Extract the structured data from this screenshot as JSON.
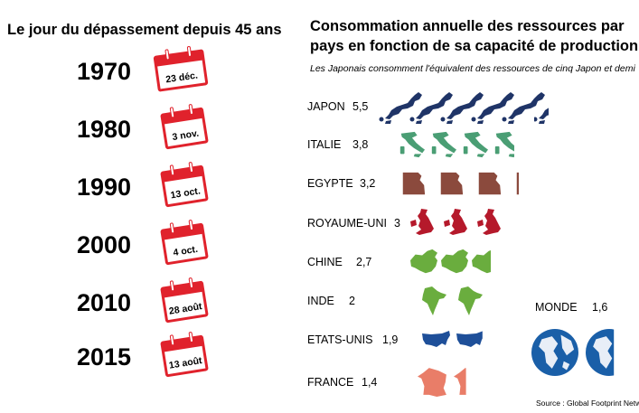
{
  "left": {
    "title": "Le jour du dépassement depuis 45 ans",
    "items": [
      {
        "year": "1970",
        "date": "23 déc."
      },
      {
        "year": "1980",
        "date": "3 nov."
      },
      {
        "year": "1990",
        "date": "13 oct."
      },
      {
        "year": "2000",
        "date": "4 oct."
      },
      {
        "year": "2010",
        "date": "28 août"
      },
      {
        "year": "2015",
        "date": "13 août"
      }
    ]
  },
  "right": {
    "title_line1": "Consommation annuelle des ressources par",
    "title_line2": "pays en fonction de sa capacité de production",
    "subtitle": "Les Japonais consomment l'équivalent des ressources de cinq Japon et demi",
    "source": "Source : Global Footprint Network"
  },
  "chart_data": {
    "type": "pictogram",
    "categories": [
      "JAPON",
      "ITALIE",
      "EGYPTE",
      "ROYAUME-UNI",
      "CHINE",
      "INDE",
      "ETATS-UNIS",
      "FRANCE",
      "MONDE"
    ],
    "values": [
      5.5,
      3.8,
      3.2,
      3,
      2.7,
      2,
      1.9,
      1.4,
      1.6
    ],
    "value_labels": [
      "5,5",
      "3,8",
      "3,2",
      "3",
      "2,7",
      "2",
      "1,9",
      "1,4",
      "1,6"
    ],
    "colors": [
      "#1f3467",
      "#4a9e74",
      "#8b4a3d",
      "#b5192b",
      "#6aad3e",
      "#6aad3e",
      "#1e4f99",
      "#e97d68",
      "#1a5fa8"
    ]
  },
  "colors": {
    "calendar_red": "#e0222c",
    "text": "#000000"
  }
}
